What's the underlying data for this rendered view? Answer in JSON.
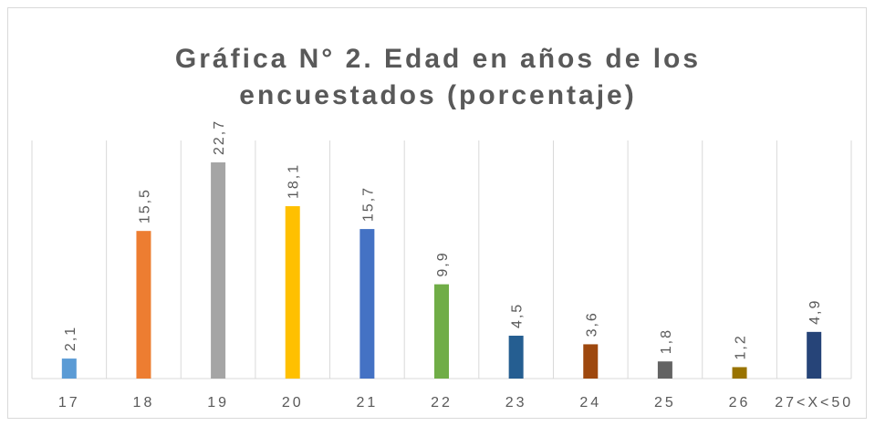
{
  "chart_data": {
    "type": "bar",
    "title": [
      "Gráfica N° 2. Edad en años de los",
      "encuestados (porcentaje)"
    ],
    "categories": [
      "17",
      "18",
      "19",
      "20",
      "21",
      "22",
      "23",
      "24",
      "25",
      "26",
      "27<X<50"
    ],
    "values": [
      2.1,
      15.5,
      22.7,
      18.1,
      15.7,
      9.9,
      4.5,
      3.6,
      1.8,
      1.2,
      4.9
    ],
    "value_labels": [
      "2,1",
      "15,5",
      "22,7",
      "18,1",
      "15,7",
      "9,9",
      "4,5",
      "3,6",
      "1,8",
      "1,2",
      "4,9"
    ],
    "colors": [
      "#5b9bd5",
      "#ed7d31",
      "#a5a5a5",
      "#ffc000",
      "#4472c4",
      "#70ad47",
      "#255e91",
      "#9e480e",
      "#636363",
      "#997300",
      "#264478"
    ],
    "ylim": [
      0,
      25
    ]
  }
}
